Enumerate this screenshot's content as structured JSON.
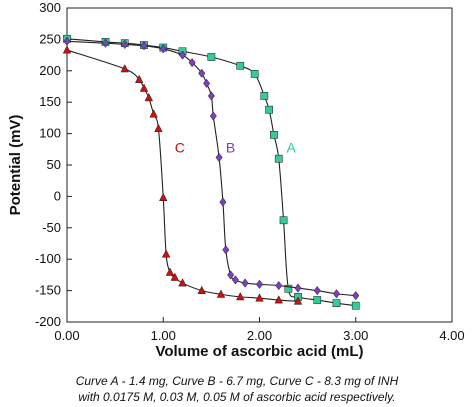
{
  "chart_data": {
    "type": "scatter",
    "xlabel": "Volume of ascorbic acid (mL)",
    "ylabel": "Potential (mV)",
    "xlim": [
      0,
      4
    ],
    "ylim": [
      -200,
      300
    ],
    "x_ticks": [
      "0.00",
      "1.00",
      "2.00",
      "3.00",
      "4.00"
    ],
    "y_ticks": [
      "-200",
      "-150",
      "-100",
      "-50",
      "0",
      "50",
      "100",
      "150",
      "200",
      "250",
      "300"
    ],
    "grid": false,
    "series": [
      {
        "name": "A",
        "color": "#33cc99",
        "marker": "square",
        "points": [
          [
            0.0,
            251
          ],
          [
            0.4,
            246
          ],
          [
            0.6,
            244
          ],
          [
            0.8,
            241
          ],
          [
            1.0,
            237
          ],
          [
            1.2,
            231
          ],
          [
            1.5,
            222
          ],
          [
            1.8,
            208
          ],
          [
            1.95,
            195
          ],
          [
            2.05,
            160
          ],
          [
            2.1,
            138
          ],
          [
            2.15,
            98
          ],
          [
            2.2,
            60
          ],
          [
            2.25,
            -38
          ],
          [
            2.3,
            -147
          ],
          [
            2.4,
            -160
          ],
          [
            2.6,
            -165
          ],
          [
            2.8,
            -170
          ],
          [
            3.0,
            -174
          ]
        ]
      },
      {
        "name": "B",
        "color": "#7b3fbf",
        "marker": "diamond",
        "points": [
          [
            0.0,
            247
          ],
          [
            0.4,
            244
          ],
          [
            0.6,
            242
          ],
          [
            0.8,
            240
          ],
          [
            1.0,
            235
          ],
          [
            1.2,
            225
          ],
          [
            1.3,
            213
          ],
          [
            1.4,
            196
          ],
          [
            1.45,
            180
          ],
          [
            1.5,
            160
          ],
          [
            1.52,
            128
          ],
          [
            1.58,
            62
          ],
          [
            1.62,
            -9
          ],
          [
            1.65,
            -85
          ],
          [
            1.7,
            -125
          ],
          [
            1.75,
            -133
          ],
          [
            1.85,
            -138
          ],
          [
            2.0,
            -140
          ],
          [
            2.2,
            -142
          ],
          [
            2.4,
            -146
          ],
          [
            2.6,
            -150
          ],
          [
            2.8,
            -155
          ],
          [
            3.0,
            -158
          ]
        ]
      },
      {
        "name": "C",
        "color": "#cc1111",
        "marker": "triangle",
        "points": [
          [
            0.0,
            233
          ],
          [
            0.6,
            203
          ],
          [
            0.75,
            186
          ],
          [
            0.8,
            172
          ],
          [
            0.85,
            157
          ],
          [
            0.9,
            131
          ],
          [
            0.95,
            108
          ],
          [
            1.0,
            -2
          ],
          [
            1.03,
            -92
          ],
          [
            1.07,
            -121
          ],
          [
            1.12,
            -129
          ],
          [
            1.2,
            -138
          ],
          [
            1.4,
            -150
          ],
          [
            1.6,
            -156
          ],
          [
            1.8,
            -160
          ],
          [
            2.0,
            -162
          ],
          [
            2.2,
            -165
          ],
          [
            2.4,
            -167
          ]
        ]
      }
    ],
    "annotations": [
      {
        "text": "A",
        "x": 2.28,
        "y": 70,
        "color": "#33cc99"
      },
      {
        "text": "B",
        "x": 1.65,
        "y": 70,
        "color": "#7b3fbf"
      },
      {
        "text": "C",
        "x": 1.12,
        "y": 70,
        "color": "#cc1111"
      }
    ]
  },
  "caption": {
    "line1": "Curve A - 1.4 mg, Curve B - 6.7 mg, Curve C - 8.3 mg of INH",
    "line2": "with 0.0175 M, 0.03 M, 0.05 M of ascorbic acid respectively."
  }
}
